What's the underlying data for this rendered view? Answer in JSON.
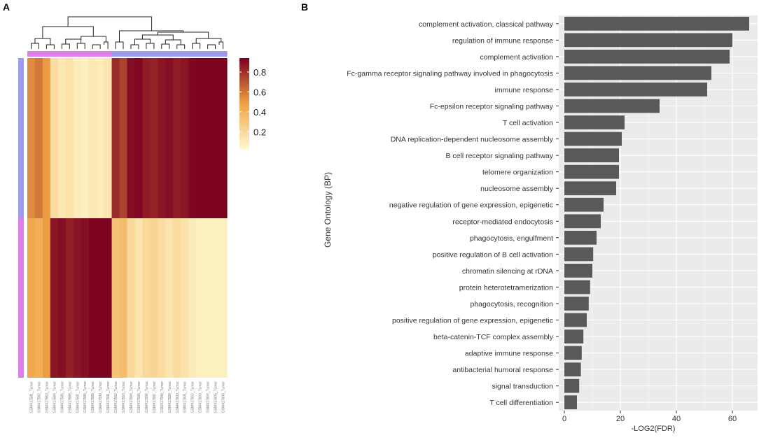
{
  "panels": {
    "a_label": "A",
    "b_label": "B"
  },
  "colors": {
    "panel_bg": "#ebebeb",
    "bar": "#595959",
    "grid": "#ffffff",
    "axis_text": "#333333",
    "group_blue": "#9b9bf0",
    "group_pink": "#e27ee9",
    "heat_low": "#fffbd2",
    "heat_mid": "#f0a345",
    "heat_high": "#7a0020"
  },
  "chart_data": [
    {
      "type": "heatmap",
      "title": "",
      "colorbar": {
        "ticks": [
          0.2,
          0.4,
          0.6,
          0.8
        ],
        "range": [
          0.02,
          0.94
        ]
      },
      "column_groups": [
        "pink",
        "pink",
        "pink",
        "pink",
        "pink",
        "pink",
        "pink",
        "pink",
        "pink",
        "pink",
        "pink",
        "blue",
        "blue",
        "blue",
        "blue",
        "blue",
        "blue",
        "blue",
        "blue",
        "blue",
        "blue",
        "blue",
        "blue",
        "blue",
        "blue",
        "blue"
      ],
      "row_groups": [
        "blue",
        "pink"
      ],
      "values": [
        [
          0.55,
          0.6,
          0.5,
          0.18,
          0.12,
          0.15,
          0.1,
          0.08,
          0.12,
          0.1,
          0.14,
          0.82,
          0.75,
          0.9,
          0.92,
          0.86,
          0.84,
          0.88,
          0.9,
          0.86,
          0.88,
          0.92,
          0.93,
          0.93,
          0.93,
          0.93
        ],
        [
          0.45,
          0.42,
          0.5,
          0.88,
          0.9,
          0.85,
          0.88,
          0.9,
          0.93,
          0.93,
          0.93,
          0.32,
          0.35,
          0.2,
          0.14,
          0.2,
          0.22,
          0.18,
          0.14,
          0.18,
          0.15,
          0.1,
          0.08,
          0.08,
          0.08,
          0.08
        ]
      ],
      "column_labels": [
        "GSM417581_Tumor",
        "GSM417582_Tumor",
        "GSM417583_Tumor",
        "GSM417584_Tumor",
        "GSM417585_Tumor",
        "GSM417586_Tumor",
        "GSM417587_Tumor",
        "GSM417588_Tumor",
        "GSM417589_Tumor",
        "GSM417590_Tumor",
        "GSM417591_Tumor",
        "GSM417592_Tumor",
        "GSM417593_Tumor",
        "GSM417594_Tumor",
        "GSM417595_Tumor",
        "GSM417596_Tumor",
        "GSM417597_Tumor",
        "GSM417598_Tumor",
        "GSM417599_Tumor",
        "GSM417600_Tumor",
        "GSM417601_Tumor",
        "GSM417602_Tumor",
        "GSM417603_Tumor",
        "GSM417604_Tumor",
        "GSM417605_Tumor",
        "GSM417606_Tumor"
      ]
    },
    {
      "type": "bar",
      "orientation": "horizontal",
      "title": "",
      "xlabel": "-LOG2(FDR)",
      "ylabel": "Gene Ontology (BP)",
      "xlim": [
        -2,
        69
      ],
      "xticks": [
        0,
        20,
        40,
        60
      ],
      "categories": [
        "complement activation, classical pathway",
        "regulation of immune response",
        "complement activation",
        "Fc-gamma receptor signaling pathway involved in phagocytosis",
        "immune response",
        "Fc-epsilon receptor signaling pathway",
        "T cell activation",
        "DNA replication-dependent nucleosome assembly",
        "B cell receptor signaling pathway",
        "telomere organization",
        "nucleosome assembly",
        "negative regulation of gene expression, epigenetic",
        "receptor-mediated endocytosis",
        "phagocytosis, engulfment",
        "positive regulation of B cell activation",
        "chromatin silencing at rDNA",
        "protein heterotetramerization",
        "phagocytosis, recognition",
        "positive regulation of gene expression, epigenetic",
        "beta-catenin-TCF complex assembly",
        "adaptive immune response",
        "antibacterial humoral response",
        "signal transduction",
        "T cell differentiation"
      ],
      "values": [
        66,
        60,
        59,
        52.5,
        51,
        34,
        21.5,
        20.5,
        19.5,
        19.5,
        18.5,
        14,
        13,
        11.5,
        10.3,
        10,
        9.2,
        8.7,
        8,
        6.8,
        6.2,
        5.9,
        5.3,
        4.5
      ]
    }
  ]
}
